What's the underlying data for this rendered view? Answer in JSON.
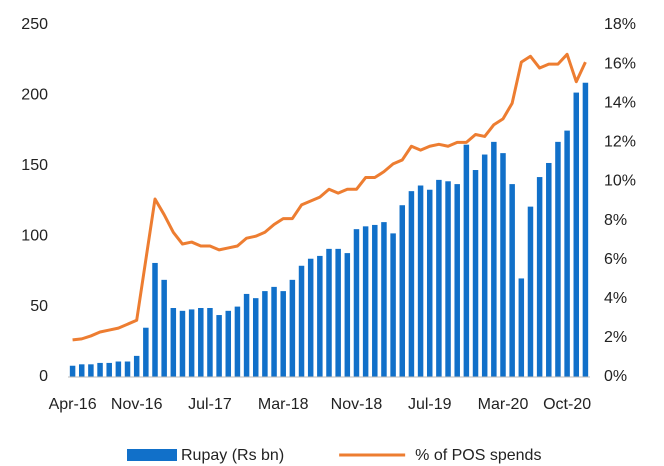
{
  "chart_data": {
    "type": "bar_line",
    "categories": [
      "Apr-16",
      null,
      null,
      null,
      null,
      null,
      null,
      "Nov-16",
      null,
      null,
      null,
      null,
      null,
      null,
      null,
      "Jul-17",
      null,
      null,
      null,
      null,
      null,
      null,
      null,
      "Mar-18",
      null,
      null,
      null,
      null,
      null,
      null,
      null,
      "Nov-18",
      null,
      null,
      null,
      null,
      null,
      null,
      null,
      "Jul-19",
      null,
      null,
      null,
      null,
      null,
      null,
      null,
      "Mar-20",
      null,
      null,
      null,
      null,
      null,
      null,
      "Oct-20",
      null,
      null
    ],
    "series": [
      {
        "name": "Rupay (Rs bn)",
        "type": "bar",
        "color": "#1170c9",
        "values": [
          8,
          9,
          9,
          10,
          10,
          11,
          11,
          15,
          35,
          81,
          69,
          49,
          47,
          48,
          49,
          49,
          44,
          47,
          50,
          59,
          56,
          61,
          64,
          61,
          69,
          79,
          84,
          86,
          91,
          91,
          88,
          105,
          107,
          108,
          110,
          102,
          122,
          132,
          136,
          133,
          140,
          139,
          137,
          165,
          147,
          158,
          167,
          159,
          137,
          70,
          121,
          142,
          152,
          167,
          175,
          202,
          209
        ]
      },
      {
        "name": "% of POS spends",
        "type": "line",
        "axis": "y2",
        "color": "#ed7d31",
        "values": [
          1.9,
          1.95,
          2.1,
          2.3,
          2.4,
          2.5,
          2.7,
          2.9,
          6.0,
          9.1,
          8.3,
          7.4,
          6.8,
          6.9,
          6.7,
          6.7,
          6.5,
          6.6,
          6.7,
          7.1,
          7.2,
          7.4,
          7.8,
          8.1,
          8.1,
          8.8,
          9.0,
          9.2,
          9.6,
          9.4,
          9.6,
          9.6,
          10.2,
          10.2,
          10.5,
          10.9,
          11.1,
          11.8,
          11.6,
          11.8,
          11.9,
          11.8,
          12.0,
          12.0,
          12.4,
          12.3,
          12.9,
          13.2,
          14.0,
          16.1,
          16.4,
          15.8,
          16.0,
          16.0,
          16.5,
          15.1,
          16.1
        ]
      }
    ],
    "ylim": [
      0,
      250
    ],
    "yticks": [
      0,
      50,
      100,
      150,
      200,
      250
    ],
    "y2lim": [
      0,
      18
    ],
    "y2ticks": [
      {
        "value": 0,
        "label": "0%"
      },
      {
        "value": 2,
        "label": "2%"
      },
      {
        "value": 4,
        "label": "4%"
      },
      {
        "value": 6,
        "label": "6%"
      },
      {
        "value": 8,
        "label": "8%"
      },
      {
        "value": 10,
        "label": "10%"
      },
      {
        "value": 12,
        "label": "12%"
      },
      {
        "value": 14,
        "label": "14%"
      },
      {
        "value": 16,
        "label": "16%"
      },
      {
        "value": 18,
        "label": "18%"
      }
    ],
    "grid": false,
    "legend": "bottom"
  }
}
